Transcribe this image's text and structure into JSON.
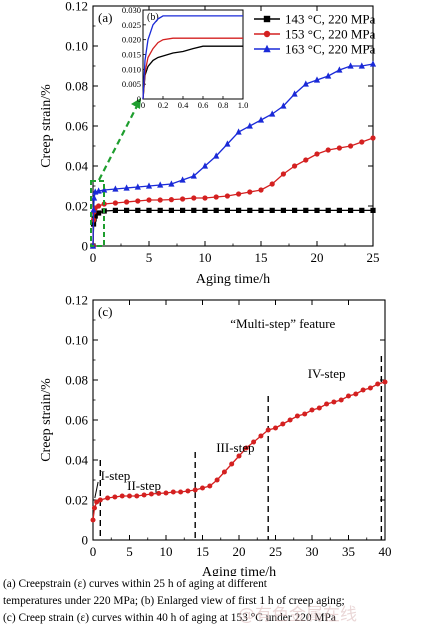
{
  "chart_data": [
    {
      "id": "a",
      "type": "line",
      "panel_label": "(a)",
      "xlabel": "Aging time/h",
      "ylabel": "Creep strain/%",
      "xlim": [
        0,
        25
      ],
      "ylim": [
        0,
        0.12
      ],
      "xticks": [
        "0",
        "5",
        "10",
        "15",
        "20",
        "25"
      ],
      "yticks": [
        "0",
        "0.02",
        "0.04",
        "0.06",
        "0.08",
        "0.10",
        "0.12"
      ],
      "legend_position": "top-right",
      "series": [
        {
          "name": "143 °C, 220 MPa",
          "color": "#000000",
          "marker": "square",
          "x": [
            0,
            0.05,
            0.1,
            0.2,
            0.5,
            1,
            2,
            3,
            4,
            5,
            6,
            7,
            8,
            9,
            10,
            11,
            12,
            13,
            14,
            15,
            16,
            17,
            18,
            19,
            20,
            21,
            22,
            23,
            24,
            25
          ],
          "y": [
            0,
            0.011,
            0.0135,
            0.015,
            0.0165,
            0.0175,
            0.0178,
            0.0178,
            0.0178,
            0.0178,
            0.0178,
            0.0178,
            0.0178,
            0.0178,
            0.0178,
            0.0178,
            0.0178,
            0.0178,
            0.0178,
            0.0178,
            0.0178,
            0.0178,
            0.0178,
            0.0178,
            0.0178,
            0.0178,
            0.0178,
            0.0178,
            0.0178,
            0.0178
          ]
        },
        {
          "name": "153 °C, 220 MPa",
          "color": "#d42020",
          "marker": "circle",
          "x": [
            0,
            0.05,
            0.1,
            0.2,
            0.5,
            1,
            2,
            3,
            4,
            5,
            6,
            7,
            8,
            9,
            10,
            11,
            12,
            13,
            14,
            15,
            16,
            17,
            18,
            19,
            20,
            21,
            22,
            23,
            24,
            25
          ],
          "y": [
            0,
            0.013,
            0.017,
            0.019,
            0.02,
            0.021,
            0.0215,
            0.022,
            0.0225,
            0.023,
            0.023,
            0.0232,
            0.0235,
            0.024,
            0.024,
            0.0245,
            0.025,
            0.026,
            0.027,
            0.028,
            0.031,
            0.036,
            0.04,
            0.043,
            0.046,
            0.048,
            0.049,
            0.05,
            0.052,
            0.054
          ]
        },
        {
          "name": "163 °C, 220 MPa",
          "color": "#1a2ad8",
          "marker": "triangle",
          "x": [
            0,
            0.05,
            0.1,
            0.2,
            0.5,
            1,
            2,
            3,
            4,
            5,
            6,
            7,
            8,
            9,
            10,
            11,
            12,
            13,
            14,
            15,
            16,
            17,
            18,
            19,
            20,
            21,
            22,
            23,
            24,
            25
          ],
          "y": [
            0,
            0.018,
            0.024,
            0.027,
            0.0275,
            0.028,
            0.0285,
            0.029,
            0.0295,
            0.03,
            0.0305,
            0.031,
            0.033,
            0.035,
            0.04,
            0.045,
            0.051,
            0.057,
            0.06,
            0.063,
            0.066,
            0.07,
            0.076,
            0.081,
            0.083,
            0.085,
            0.088,
            0.09,
            0.09,
            0.091
          ]
        }
      ]
    },
    {
      "id": "b",
      "type": "line",
      "panel_label": "(b)",
      "xlim": [
        0,
        1.0
      ],
      "ylim": [
        0,
        0.03
      ],
      "xticks": [
        "0",
        "0.2",
        "0.4",
        "0.6",
        "0.8",
        "1.0"
      ],
      "yticks": [
        "0",
        "0.005",
        "0.010",
        "0.015",
        "0.020",
        "0.025",
        "0.030"
      ],
      "series": [
        {
          "name": "143 °C, 220 MPa",
          "color": "#000000",
          "x": [
            0,
            0.02,
            0.05,
            0.1,
            0.15,
            0.2,
            0.3,
            0.4,
            0.5,
            0.6,
            0.7,
            0.8,
            0.9,
            1.0
          ],
          "y": [
            0,
            0.008,
            0.011,
            0.013,
            0.014,
            0.0145,
            0.0155,
            0.016,
            0.017,
            0.0178,
            0.0178,
            0.0178,
            0.0178,
            0.0178
          ]
        },
        {
          "name": "153 °C, 220 MPa",
          "color": "#d42020",
          "x": [
            0,
            0.02,
            0.05,
            0.1,
            0.15,
            0.2,
            0.3,
            0.4,
            0.5,
            0.6,
            0.7,
            0.8,
            0.9,
            1.0
          ],
          "y": [
            0,
            0.009,
            0.014,
            0.017,
            0.019,
            0.02,
            0.0205,
            0.0205,
            0.0205,
            0.0205,
            0.0205,
            0.0205,
            0.0205,
            0.0205
          ]
        },
        {
          "name": "163 °C, 220 MPa",
          "color": "#1a2ad8",
          "x": [
            0,
            0.02,
            0.05,
            0.1,
            0.15,
            0.2,
            0.3,
            0.4,
            0.5,
            0.6,
            0.7,
            0.8,
            0.9,
            1.0
          ],
          "y": [
            0,
            0.013,
            0.02,
            0.025,
            0.027,
            0.028,
            0.028,
            0.028,
            0.028,
            0.028,
            0.028,
            0.028,
            0.028,
            0.028
          ]
        }
      ]
    },
    {
      "id": "c",
      "type": "line",
      "panel_label": "(c)",
      "xlabel": "Aging time/h",
      "ylabel": "Creep strain/%",
      "xlim": [
        0,
        40
      ],
      "ylim": [
        0,
        0.12
      ],
      "xticks": [
        "0",
        "5",
        "10",
        "15",
        "20",
        "25",
        "30",
        "35",
        "40"
      ],
      "yticks": [
        "0",
        "0.02",
        "0.04",
        "0.06",
        "0.08",
        "0.10",
        "0.12"
      ],
      "annotation": "“Multi-step” feature",
      "steps": [
        {
          "label": "I-step",
          "x": 0.5,
          "y": 0.032
        },
        {
          "label": "II-step",
          "x": 7,
          "y": 0.027
        },
        {
          "label": "III-step",
          "x": 19.5,
          "y": 0.046
        },
        {
          "label": "IV-step",
          "x": 32,
          "y": 0.083
        }
      ],
      "step_boundaries": [
        1,
        14,
        24,
        39.5
      ],
      "series": [
        {
          "name": "",
          "color": "#d42020",
          "marker": "circle",
          "x": [
            0,
            0.2,
            0.5,
            1,
            2,
            3,
            4,
            5,
            6,
            7,
            8,
            9,
            10,
            11,
            12,
            13,
            14,
            15,
            16,
            17,
            18,
            19,
            20,
            21,
            22,
            23,
            24,
            25,
            26,
            27,
            28,
            29,
            30,
            31,
            32,
            33,
            34,
            35,
            36,
            37,
            38,
            39,
            40
          ],
          "y": [
            0.01,
            0.016,
            0.019,
            0.02,
            0.021,
            0.0215,
            0.022,
            0.022,
            0.022,
            0.0225,
            0.023,
            0.0233,
            0.0235,
            0.024,
            0.024,
            0.0245,
            0.025,
            0.026,
            0.027,
            0.03,
            0.034,
            0.038,
            0.042,
            0.046,
            0.049,
            0.052,
            0.055,
            0.056,
            0.058,
            0.06,
            0.062,
            0.063,
            0.065,
            0.066,
            0.068,
            0.069,
            0.07,
            0.072,
            0.073,
            0.075,
            0.076,
            0.078,
            0.079
          ]
        }
      ]
    }
  ],
  "caption": {
    "line1": "(a) Creepstrain (ε) curves within 25 h of aging at different",
    "line2": "temperatures under 220 MPa; (b) Enlarged view of first 1 h of creep aging;",
    "line3": "(c) Creep strain (ε) curves within 40 h of aging at 153 °C under 220 MPa"
  },
  "watermark": "@有色金属在线"
}
